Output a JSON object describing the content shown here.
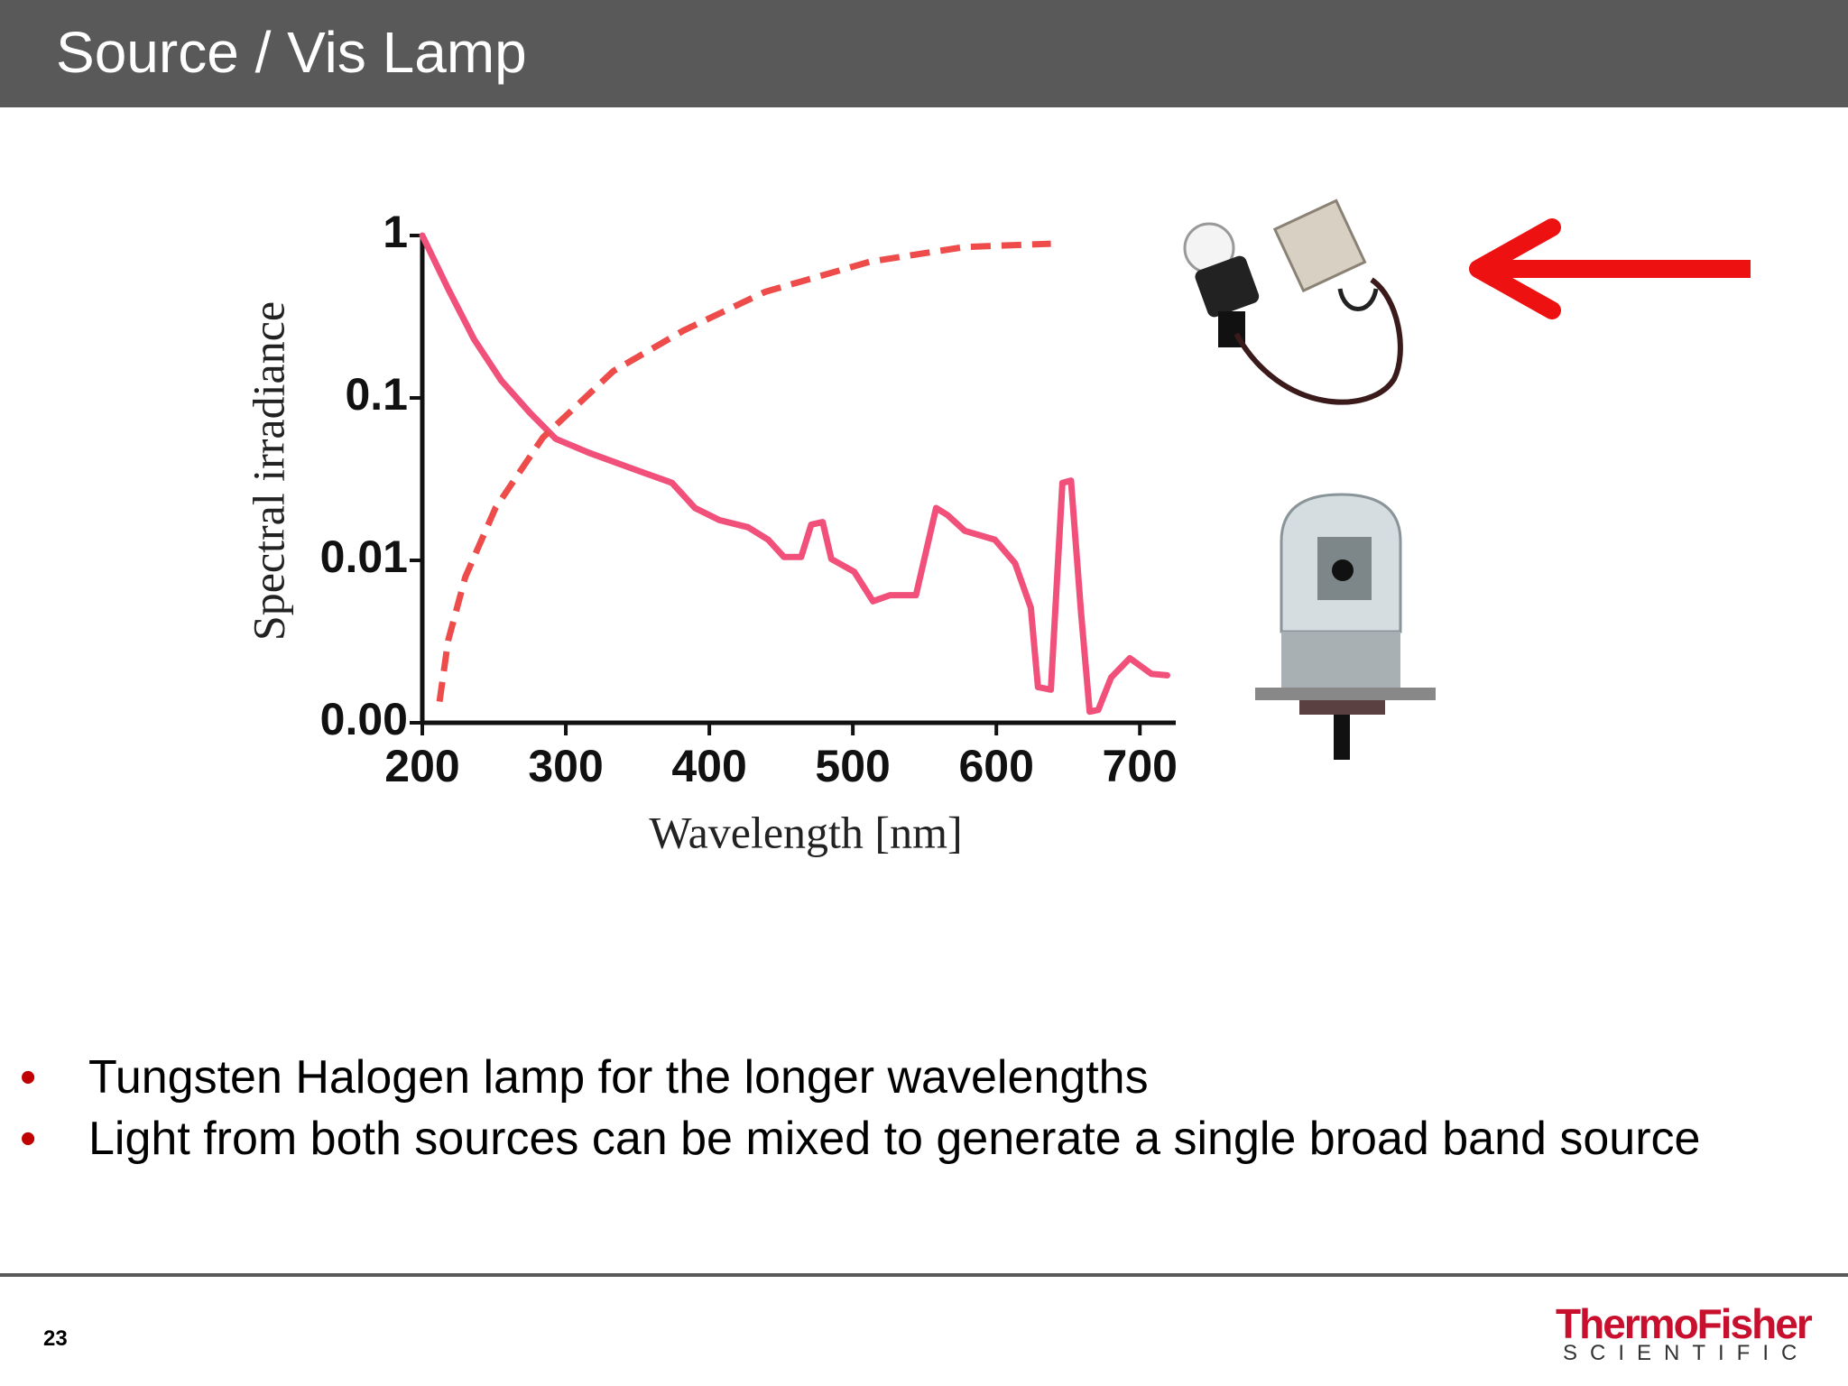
{
  "header": {
    "title": "Source / Vis Lamp"
  },
  "chart_data": {
    "type": "line",
    "ylabel": "Spectral irradiance",
    "xlabel": "Wavelength [nm]",
    "xlim": [
      200,
      725
    ],
    "xticks": [
      200,
      300,
      400,
      500,
      600,
      700
    ],
    "ylim": [
      0.001,
      1
    ],
    "yscale": "log",
    "yticks": [
      {
        "value": 0.001,
        "label": "0.00"
      },
      0.01,
      0.1,
      1
    ],
    "series": [
      {
        "color": "#f0507a",
        "line_style": "solid",
        "x": [
          200,
          218,
          236,
          255,
          275,
          293,
          316,
          349,
          374,
          390,
          407,
          427,
          441,
          452,
          464,
          471,
          479,
          485,
          501,
          514,
          526,
          544,
          558,
          566,
          578,
          599,
          613,
          624,
          629,
          638,
          646,
          652,
          659,
          665,
          671,
          680,
          693,
          708,
          719
        ],
        "values": [
          1.0,
          0.47,
          0.23,
          0.128,
          0.081,
          0.056,
          0.046,
          0.036,
          0.03,
          0.021,
          0.0177,
          0.016,
          0.0134,
          0.0105,
          0.0105,
          0.0166,
          0.0172,
          0.0102,
          0.0085,
          0.0056,
          0.0061,
          0.0061,
          0.021,
          0.019,
          0.0152,
          0.0134,
          0.0096,
          0.0051,
          0.00166,
          0.0016,
          0.03,
          0.031,
          0.0048,
          0.00117,
          0.0012,
          0.0019,
          0.0025,
          0.002,
          0.00196
        ]
      },
      {
        "color": "#ee4b4b",
        "line_style": "dashed",
        "x": [
          212,
          218,
          230,
          251,
          284,
          333,
          382,
          439,
          512,
          578,
          638
        ],
        "values": [
          0.00135,
          0.0032,
          0.0079,
          0.021,
          0.057,
          0.146,
          0.26,
          0.45,
          0.69,
          0.85,
          0.89
        ]
      }
    ]
  },
  "bullets": [
    "Tungsten Halogen lamp for the longer wavelengths",
    "Light from both sources can be mixed to generate a single broad band source"
  ],
  "footer": {
    "page_number": "23",
    "logo": "ThermoFisher",
    "logo_sub": "SCIENTIFIC"
  }
}
